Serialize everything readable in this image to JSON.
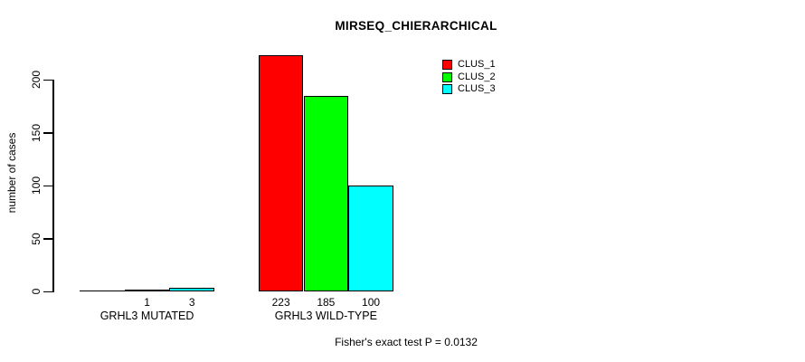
{
  "title": "MIRSEQ_CHIERARCHICAL",
  "chart_data": {
    "type": "bar",
    "title": "MIRSEQ_CHIERARCHICAL",
    "xlabel": "",
    "ylabel": "number of cases",
    "categories": [
      "GRHL3 MUTATED",
      "GRHL3 WILD-TYPE"
    ],
    "series": [
      {
        "name": "CLUS_1",
        "color": "#ff0000",
        "values": [
          0,
          223
        ]
      },
      {
        "name": "CLUS_2",
        "color": "#00ff00",
        "values": [
          1,
          185
        ]
      },
      {
        "name": "CLUS_3",
        "color": "#00ffff",
        "values": [
          3,
          100
        ]
      }
    ],
    "bar_value_labels": [
      [
        "",
        "223"
      ],
      [
        "1",
        "185"
      ],
      [
        "3",
        "100"
      ]
    ],
    "y_ticks": [
      0,
      50,
      100,
      150,
      200
    ],
    "ylim": [
      0,
      223
    ],
    "grid": false,
    "legend_position": "top-right",
    "bar_border_color": "#000000",
    "annotation": "Fisher's exact test P = 0.0132"
  }
}
